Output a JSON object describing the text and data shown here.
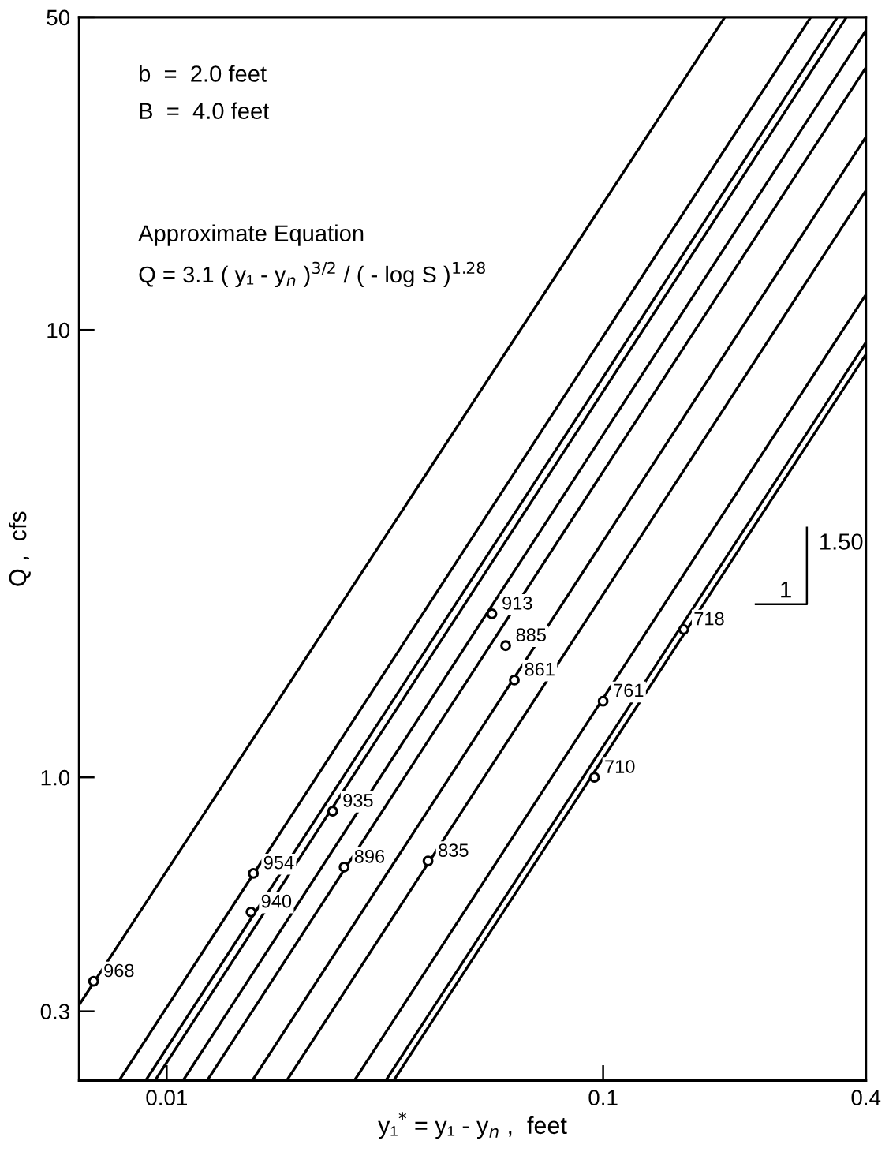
{
  "chart_data": {
    "type": "line",
    "xlabel": "y₁$^{*}$ = y₁ - y$_{n}$ ,  feet",
    "ylabel": "Q ,  cfs",
    "log": "xy",
    "grid": false,
    "marker": "none",
    "line_style": "solid",
    "xlim": [
      0.0063,
      0.4
    ],
    "ylim": [
      0.21,
      50
    ],
    "xticks": [
      0.01,
      0.1,
      0.4
    ],
    "yticks": [
      0.3,
      {
        "value": 1,
        "label": "1.0"
      },
      10,
      50
    ],
    "series": [
      {
        "color": "#000000",
        "x": [
          0.0063,
          0.19
        ],
        "values": [
          0.31,
          50
        ]
      },
      {
        "color": "#000000",
        "x": [
          0.00778,
          0.299
        ],
        "values": [
          0.21,
          50
        ]
      },
      {
        "color": "#000000",
        "x": [
          0.00895,
          0.344
        ],
        "values": [
          0.21,
          50
        ]
      },
      {
        "color": "#000000",
        "x": [
          0.0094,
          0.361
        ],
        "values": [
          0.21,
          50
        ]
      },
      {
        "color": "#000000",
        "x": [
          0.0109,
          0.4
        ],
        "values": [
          0.21,
          46.7
        ]
      },
      {
        "color": "#000000",
        "x": [
          0.01238,
          0.4
        ],
        "values": [
          0.21,
          38.6
        ]
      },
      {
        "color": "#000000",
        "x": [
          0.01571,
          0.4
        ],
        "values": [
          0.21,
          27.0
        ]
      },
      {
        "color": "#000000",
        "x": [
          0.01884,
          0.4
        ],
        "values": [
          0.21,
          20.5
        ]
      },
      {
        "color": "#000000",
        "x": [
          0.02692,
          0.4
        ],
        "values": [
          0.21,
          12.0
        ]
      },
      {
        "color": "#000000",
        "x": [
          0.03177,
          0.4
        ],
        "values": [
          0.21,
          9.38
        ]
      },
      {
        "color": "#000000",
        "x": [
          0.03311,
          0.4
        ],
        "values": [
          0.21,
          8.82
        ]
      },
      {
        "type": "scatter",
        "color": "#000000",
        "marker": "circle",
        "x": [
          0.0068,
          0.0158,
          0.0156,
          0.024,
          0.0255,
          0.0397,
          0.0556,
          0.0598,
          0.0626,
          0.1,
          0.0955,
          0.153
        ],
        "values": [
          0.35,
          0.61,
          0.5,
          0.84,
          0.63,
          0.65,
          2.32,
          1.97,
          1.65,
          1.48,
          1.0,
          2.14
        ]
      }
    ],
    "annotations": [
      "b  =  2.0 feet",
      "B  =  4.0 feet",
      "Approximate Equation",
      "Q = 3.1 ( y₁ - y$_{n}$ )$^{3/2}$ / ( - log S )$^{1.28}$",
      "1.50",
      "1",
      {
        "text": "968",
        "x": 0.0068,
        "y": 0.35
      },
      {
        "text": "954",
        "x": 0.0158,
        "y": 0.61
      },
      {
        "text": "940",
        "x": 0.0156,
        "y": 0.5
      },
      {
        "text": "935",
        "x": 0.024,
        "y": 0.84
      },
      {
        "text": "896",
        "x": 0.0255,
        "y": 0.63
      },
      {
        "text": "835",
        "x": 0.0397,
        "y": 0.65
      },
      {
        "text": "913",
        "x": 0.0556,
        "y": 2.32
      },
      {
        "text": "885",
        "x": 0.0598,
        "y": 1.97
      },
      {
        "text": "861",
        "x": 0.0626,
        "y": 1.65
      },
      {
        "text": "761",
        "x": 0.1,
        "y": 1.48
      },
      {
        "text": "710",
        "x": 0.0955,
        "y": 1.0
      },
      {
        "text": "718",
        "x": 0.153,
        "y": 2.14
      }
    ]
  }
}
